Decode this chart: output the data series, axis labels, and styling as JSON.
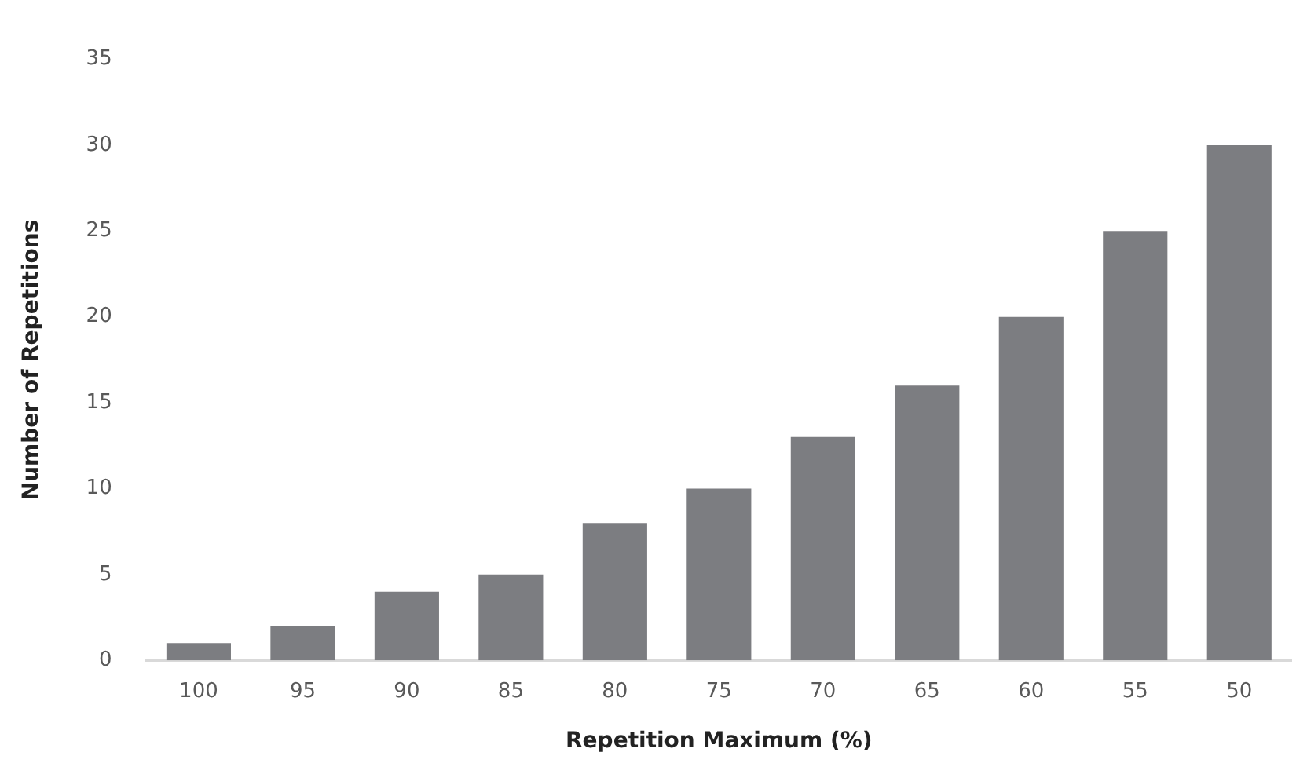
{
  "chart_data": {
    "type": "bar",
    "xlabel": "Repetition Maximum (%)",
    "ylabel": "Number of Repetitions",
    "categories": [
      "100",
      "95",
      "90",
      "85",
      "80",
      "75",
      "70",
      "65",
      "60",
      "55",
      "50"
    ],
    "values": [
      1,
      2,
      4,
      5,
      8,
      10,
      13,
      16,
      20,
      25,
      30
    ],
    "color": "#7c7d81",
    "ylim": [
      0,
      35
    ],
    "yticks": [
      0,
      5,
      10,
      15,
      20,
      25,
      30,
      35
    ],
    "grid": false,
    "legend": false
  }
}
